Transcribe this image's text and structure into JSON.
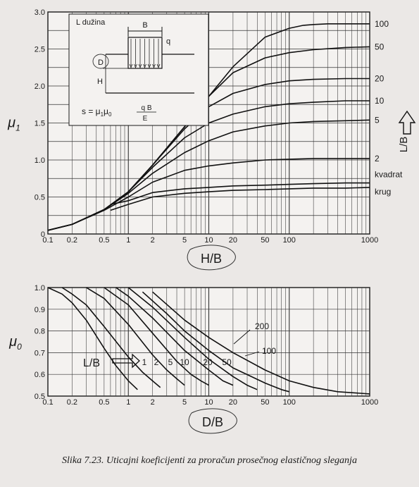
{
  "caption": "Slika 7.23. Uticajni koeficijenti za proračun prosečnog elastičnog sleganja",
  "chart_data": [
    {
      "type": "line",
      "x_scale": "log",
      "xlim": [
        0.1,
        1000
      ],
      "ylim": [
        0,
        3.0
      ],
      "ylabel": "μ1",
      "xlabel": "H/B",
      "x_ticks": [
        0.1,
        0.2,
        0.5,
        1,
        2,
        5,
        10,
        20,
        50,
        100,
        1000
      ],
      "x_tick_labels": [
        "0.1",
        "0.2",
        "0.5",
        "1",
        "2",
        "5",
        "10",
        "20",
        "50",
        "100",
        "1000"
      ],
      "y_ticks": [
        0,
        0.5,
        1.0,
        1.5,
        2.0,
        2.5,
        3.0
      ],
      "y_tick_labels": [
        "0",
        "0.5",
        "1.0",
        "1.5",
        "2.0",
        "2.5",
        "3.0"
      ],
      "right_axis_label": "L/B",
      "grid": true,
      "inset": {
        "title": "L dužina",
        "b_label": "B",
        "q_label": "q",
        "d_label": "D",
        "h_label": "H",
        "formula_lhs": "s = μ",
        "formula_sub1": "1",
        "formula_mid": "μ",
        "formula_sub0": "0",
        "formula_num": "q B",
        "formula_den": "E"
      },
      "series": [
        {
          "name": "100",
          "x": [
            0.1,
            0.2,
            0.5,
            1,
            2,
            5,
            10,
            20,
            50,
            100,
            150,
            200,
            300,
            500,
            1000
          ],
          "y": [
            0.05,
            0.13,
            0.33,
            0.57,
            0.93,
            1.45,
            1.86,
            2.26,
            2.66,
            2.78,
            2.82,
            2.83,
            2.84,
            2.84,
            2.84
          ]
        },
        {
          "name": "50",
          "x": [
            0.1,
            0.2,
            0.5,
            1,
            2,
            5,
            10,
            20,
            50,
            100,
            200,
            500,
            1000
          ],
          "y": [
            0.05,
            0.13,
            0.33,
            0.57,
            0.93,
            1.45,
            1.86,
            2.18,
            2.38,
            2.45,
            2.49,
            2.52,
            2.53
          ]
        },
        {
          "name": "20",
          "x": [
            0.1,
            0.2,
            0.5,
            1,
            2,
            5,
            10,
            20,
            50,
            100,
            200,
            500,
            1000
          ],
          "y": [
            0.05,
            0.13,
            0.33,
            0.57,
            0.93,
            1.42,
            1.72,
            1.9,
            2.02,
            2.07,
            2.09,
            2.1,
            2.1
          ]
        },
        {
          "name": "10",
          "x": [
            0.1,
            0.2,
            0.5,
            1,
            2,
            5,
            10,
            20,
            50,
            100,
            200,
            500,
            1000
          ],
          "y": [
            0.05,
            0.13,
            0.33,
            0.57,
            0.9,
            1.3,
            1.5,
            1.62,
            1.72,
            1.76,
            1.78,
            1.8,
            1.8
          ]
        },
        {
          "name": "5",
          "x": [
            0.1,
            0.2,
            0.5,
            1,
            2,
            5,
            10,
            20,
            50,
            100,
            200,
            500,
            1000
          ],
          "y": [
            0.05,
            0.13,
            0.33,
            0.55,
            0.82,
            1.1,
            1.26,
            1.38,
            1.46,
            1.5,
            1.52,
            1.53,
            1.54
          ]
        },
        {
          "name": "2",
          "x": [
            0.1,
            0.2,
            0.5,
            1,
            2,
            5,
            10,
            20,
            50,
            100,
            200,
            500,
            1000
          ],
          "y": [
            0.05,
            0.13,
            0.32,
            0.5,
            0.7,
            0.86,
            0.92,
            0.96,
            1.0,
            1.01,
            1.02,
            1.02,
            1.02
          ]
        },
        {
          "name": "kvadrat",
          "x": [
            0.6,
            1,
            2,
            5,
            10,
            20,
            50,
            100,
            200,
            500,
            1000
          ],
          "y": [
            0.4,
            0.45,
            0.56,
            0.61,
            0.63,
            0.65,
            0.66,
            0.67,
            0.68,
            0.69,
            0.69
          ]
        },
        {
          "name": "krug",
          "x": [
            0.6,
            1,
            2,
            5,
            10,
            20,
            50,
            100,
            200,
            500,
            1000
          ],
          "y": [
            0.32,
            0.4,
            0.5,
            0.55,
            0.57,
            0.59,
            0.6,
            0.61,
            0.62,
            0.62,
            0.63
          ]
        }
      ]
    },
    {
      "type": "line",
      "x_scale": "log",
      "xlim": [
        0.1,
        1000
      ],
      "ylim": [
        0.5,
        1.0
      ],
      "ylabel": "μ0",
      "xlabel": "D/B",
      "x_ticks": [
        0.1,
        0.2,
        0.5,
        1,
        2,
        5,
        10,
        20,
        50,
        100,
        1000
      ],
      "x_tick_labels": [
        "0.1",
        "0.2",
        "0.5",
        "1",
        "2",
        "5",
        "10",
        "20",
        "50",
        "100",
        "1000"
      ],
      "y_ticks": [
        0.5,
        0.6,
        0.7,
        0.8,
        0.9,
        1.0
      ],
      "y_tick_labels": [
        "0.5",
        "0.6",
        "0.7",
        "0.8",
        "0.9",
        "1.0"
      ],
      "grid": true,
      "lb_label": "L/B",
      "series": [
        {
          "name": "1",
          "x": [
            0.1,
            0.15,
            0.2,
            0.3,
            0.5,
            0.7,
            1,
            1.3
          ],
          "y": [
            1.0,
            0.97,
            0.93,
            0.85,
            0.72,
            0.64,
            0.57,
            0.53
          ]
        },
        {
          "name": "2",
          "x": [
            0.15,
            0.2,
            0.3,
            0.5,
            1,
            1.5,
            2,
            2.5
          ],
          "y": [
            1.0,
            0.97,
            0.92,
            0.82,
            0.68,
            0.61,
            0.57,
            0.54
          ]
        },
        {
          "name": "5",
          "x": [
            0.3,
            0.5,
            1,
            2,
            3,
            4,
            5
          ],
          "y": [
            1.0,
            0.95,
            0.83,
            0.69,
            0.62,
            0.58,
            0.55
          ]
        },
        {
          "name": "10",
          "x": [
            0.5,
            1,
            2,
            4,
            6,
            8,
            10
          ],
          "y": [
            1.0,
            0.92,
            0.79,
            0.66,
            0.6,
            0.57,
            0.55
          ]
        },
        {
          "name": "20",
          "x": [
            0.7,
            1,
            2,
            5,
            10,
            15,
            20
          ],
          "y": [
            1.0,
            0.96,
            0.86,
            0.71,
            0.62,
            0.57,
            0.55
          ]
        },
        {
          "name": "50",
          "x": [
            1,
            2,
            5,
            10,
            20,
            30,
            40
          ],
          "y": [
            1.0,
            0.91,
            0.77,
            0.67,
            0.59,
            0.55,
            0.53
          ]
        },
        {
          "name": "100",
          "x": [
            1.5,
            3,
            5,
            10,
            20,
            50,
            80,
            100
          ],
          "y": [
            0.98,
            0.88,
            0.8,
            0.71,
            0.63,
            0.56,
            0.53,
            0.52
          ]
        },
        {
          "name": "200",
          "x": [
            2,
            5,
            10,
            20,
            50,
            100,
            200,
            400,
            1000
          ],
          "y": [
            0.98,
            0.85,
            0.77,
            0.7,
            0.62,
            0.57,
            0.54,
            0.52,
            0.51
          ]
        }
      ]
    }
  ]
}
